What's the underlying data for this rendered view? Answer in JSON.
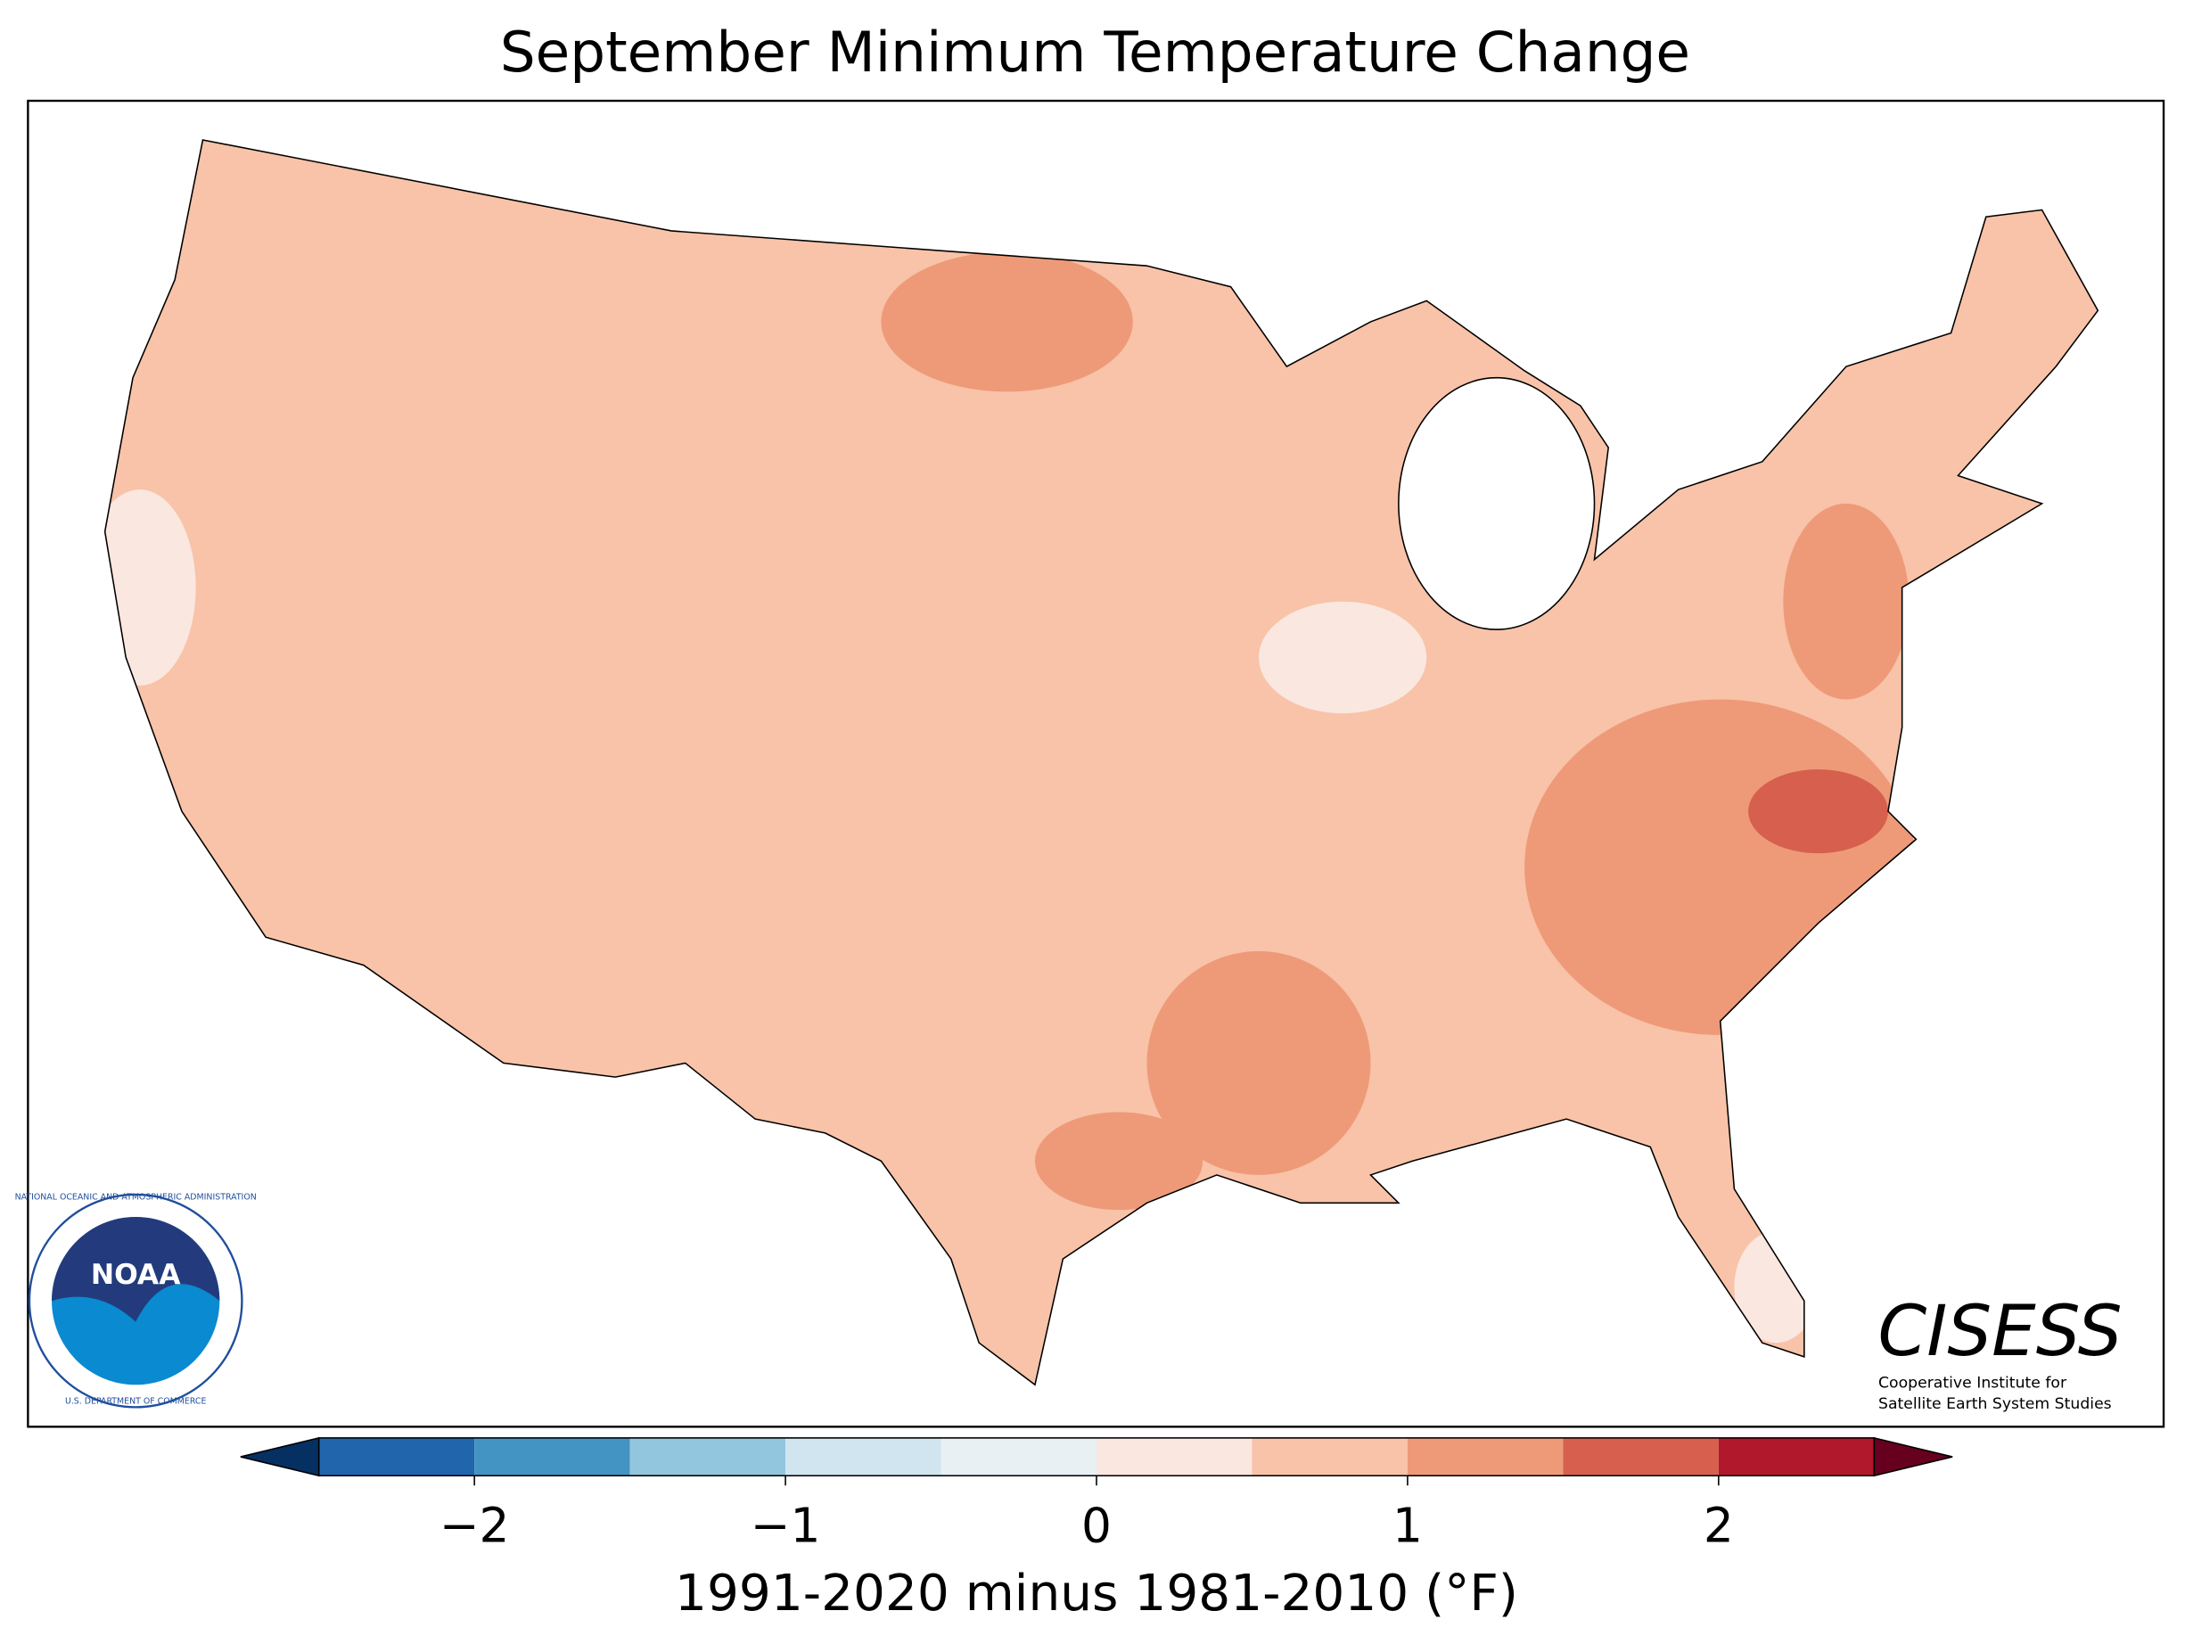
{
  "title": "September Minimum Temperature Change",
  "colorbar": {
    "bounds": [
      -2.5,
      -2,
      -1.5,
      -1,
      -0.5,
      0,
      0.5,
      1,
      1.5,
      2,
      2.5
    ],
    "colors": [
      "#2166ac",
      "#4393c3",
      "#92c5de",
      "#d1e5f0",
      "#e8f0f4",
      "#fae7df",
      "#f8c3a8",
      "#ee9a78",
      "#d6604d",
      "#b2182b"
    ],
    "extend_colors": [
      "#053061",
      "#67001f"
    ],
    "ticks": [
      {
        "value": -2,
        "label": "−2"
      },
      {
        "value": -1,
        "label": "−1"
      },
      0,
      1,
      2
    ],
    "label": "1991-2020 minus 1981-2010 (°F)"
  },
  "noaa_logo": {
    "name": "NOAA",
    "ring_top": "NATIONAL OCEANIC AND ATMOSPHERIC ADMINISTRATION",
    "ring_bottom": "U.S. DEPARTMENT OF COMMERCE"
  },
  "cisess_logo": {
    "name": "CISESS",
    "line1": "Cooperative Institute for",
    "line2": "Satellite Earth System Studies"
  }
}
